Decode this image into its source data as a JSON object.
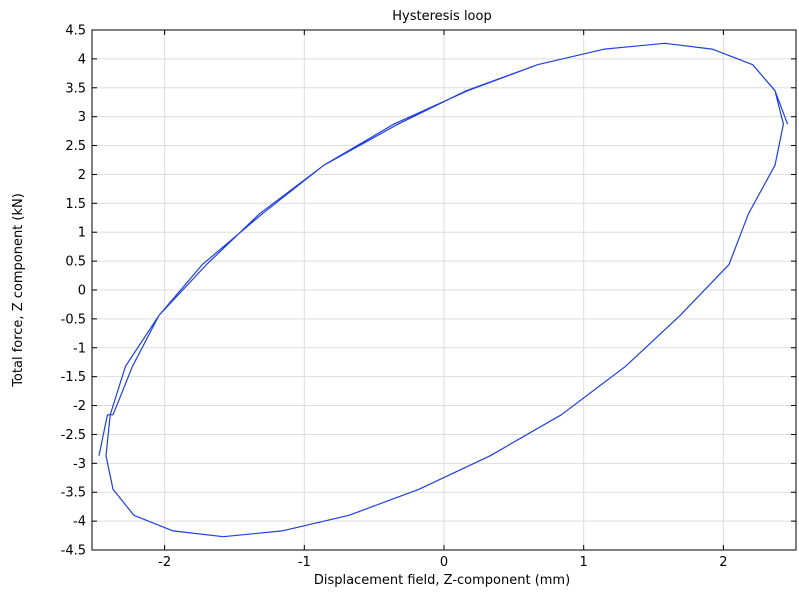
{
  "chart_data": {
    "type": "line",
    "title": "Hysteresis loop",
    "xlabel": "Displacement field, Z-component (mm)",
    "ylabel": "Total force, Z component (kN)",
    "xlim": [
      -2.52,
      2.52
    ],
    "ylim": [
      -4.5,
      4.5
    ],
    "x_ticks": [
      -2,
      -1,
      0,
      1,
      2
    ],
    "x_tick_labels": [
      "-2",
      "-1",
      "0",
      "1",
      "2"
    ],
    "y_ticks": [
      -4.5,
      -4,
      -3.5,
      -3,
      -2.5,
      -2,
      -1.5,
      -1,
      -0.5,
      0,
      0.5,
      1,
      1.5,
      2,
      2.5,
      3,
      3.5,
      4,
      4.5
    ],
    "y_tick_labels": [
      "-4.5",
      "-4",
      "-3.5",
      "-3",
      "-2.5",
      "-2",
      "-1.5",
      "-1",
      "-0.5",
      "0",
      "0.5",
      "1",
      "1.5",
      "2",
      "2.5",
      "3",
      "3.5",
      "4",
      "4.5"
    ],
    "grid": true,
    "series": [
      {
        "color": "#1f3fe0",
        "x": [
          -2.47,
          -2.41,
          -2.37,
          -2.23,
          -2.04,
          -1.7,
          -1.32,
          -0.86,
          -0.36,
          0.17,
          0.67,
          1.15,
          1.58,
          1.92,
          2.21,
          2.37,
          2.43,
          2.37,
          2.18,
          2.04,
          1.69,
          1.3,
          0.84,
          0.33,
          -0.18,
          -0.68,
          -1.16,
          -1.58,
          -1.94,
          -2.22,
          -2.37,
          -2.42,
          -2.39,
          -2.28,
          -2.04,
          -1.73,
          -1.3,
          -0.86,
          -0.33,
          0.16,
          0.67,
          1.15,
          1.58,
          1.92,
          2.21,
          2.37,
          2.46
        ],
        "y": [
          -2.87,
          -2.16,
          -2.16,
          -1.32,
          -0.44,
          0.44,
          1.32,
          2.16,
          2.87,
          3.45,
          3.9,
          4.17,
          4.27,
          4.17,
          3.9,
          3.45,
          2.87,
          2.16,
          1.32,
          0.44,
          -0.44,
          -1.32,
          -2.16,
          -2.87,
          -3.45,
          -3.9,
          -4.17,
          -4.27,
          -4.17,
          -3.9,
          -3.45,
          -2.87,
          -2.16,
          -1.32,
          -0.44,
          0.44,
          1.32,
          2.16,
          2.87,
          3.45,
          3.9,
          4.17,
          4.27,
          4.17,
          3.9,
          3.45,
          2.87
        ]
      }
    ]
  }
}
